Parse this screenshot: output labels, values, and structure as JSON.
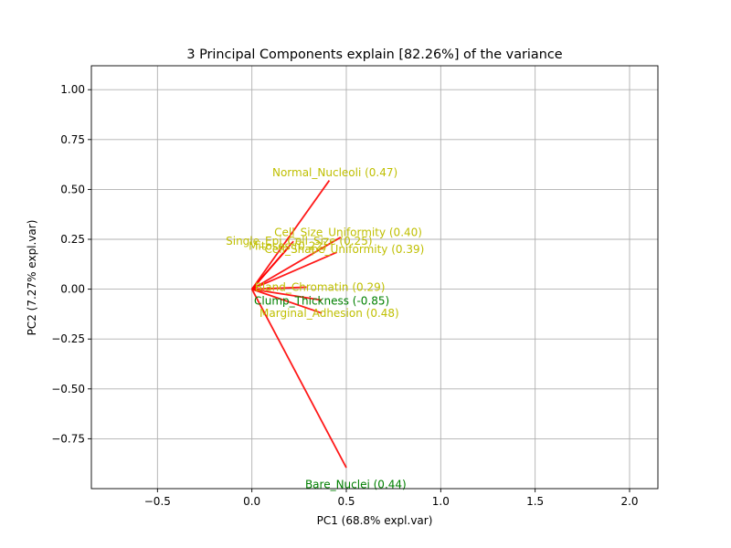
{
  "chart_data": {
    "type": "biplot",
    "title": "3 Principal Components explain [82.26%] of the variance",
    "xlabel": "PC1 (68.8% expl.var)",
    "ylabel": "PC2 (7.27% expl.var)",
    "xlim": [
      -0.85,
      2.15
    ],
    "ylim": [
      -1.0,
      1.12
    ],
    "xticks": [
      -0.5,
      0.0,
      0.5,
      1.0,
      1.5,
      2.0
    ],
    "xtick_labels": [
      "−0.5",
      "0.0",
      "0.5",
      "1.0",
      "1.5",
      "2.0"
    ],
    "yticks": [
      1.0,
      0.75,
      0.5,
      0.25,
      0.0,
      -0.25,
      -0.5,
      -0.75
    ],
    "ytick_labels": [
      "1.00",
      "0.75",
      "0.50",
      "0.25",
      "0.00",
      "−0.25",
      "−0.50",
      "−0.75"
    ],
    "grid": true,
    "arrow_color": "#ff0000",
    "vectors": [
      {
        "label": "Normal_Nucleoli (0.47)",
        "x": 0.41,
        "y": 0.545,
        "label_x": 0.44,
        "label_y": 0.585,
        "color": "#bfbf00"
      },
      {
        "label": "Cell_Size_Uniformity (0.40)",
        "x": 0.47,
        "y": 0.26,
        "label_x": 0.51,
        "label_y": 0.285,
        "color": "#bfbf00"
      },
      {
        "label": "Single_Epi_Cell_Size (0.25)",
        "x": 0.22,
        "y": 0.24,
        "label_x": 0.25,
        "label_y": 0.24,
        "color": "#bfbf00"
      },
      {
        "label": "Mitoses (0.22)",
        "x": 0.19,
        "y": 0.205,
        "label_x": 0.19,
        "label_y": 0.215,
        "color": "#bfbf00"
      },
      {
        "label": "Cell_Shape_Uniformity (0.39)",
        "x": 0.45,
        "y": 0.185,
        "label_x": 0.49,
        "label_y": 0.2,
        "color": "#bfbf00"
      },
      {
        "label": "Bland_Chromatin (0.29)",
        "x": 0.29,
        "y": 0.01,
        "label_x": 0.36,
        "label_y": 0.01,
        "color": "#bfbf00"
      },
      {
        "label": "Clump_Thickness (-0.85)",
        "x": 0.37,
        "y": -0.055,
        "label_x": 0.37,
        "label_y": -0.06,
        "color": "#008000"
      },
      {
        "label": "Marginal_Adhesion (0.48)",
        "x": 0.37,
        "y": -0.12,
        "label_x": 0.41,
        "label_y": -0.12,
        "color": "#bfbf00"
      },
      {
        "label": "Bare_Nuclei (0.44)",
        "x": 0.5,
        "y": -0.895,
        "label_x": 0.55,
        "label_y": -0.98,
        "color": "#008000"
      }
    ]
  }
}
